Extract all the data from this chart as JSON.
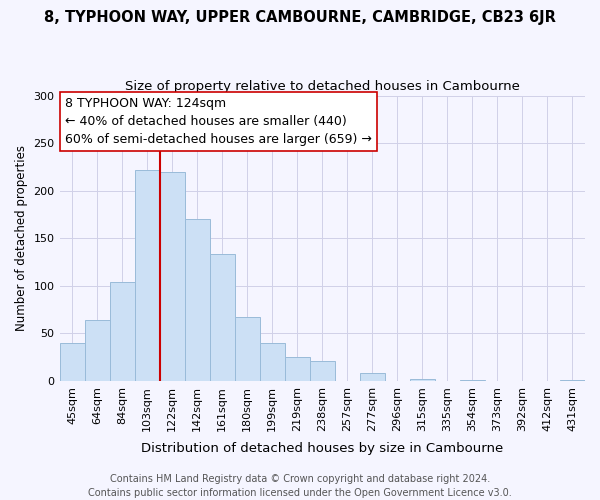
{
  "title": "8, TYPHOON WAY, UPPER CAMBOURNE, CAMBRIDGE, CB23 6JR",
  "subtitle": "Size of property relative to detached houses in Cambourne",
  "xlabel": "Distribution of detached houses by size in Cambourne",
  "ylabel": "Number of detached properties",
  "bar_labels": [
    "45sqm",
    "64sqm",
    "84sqm",
    "103sqm",
    "122sqm",
    "142sqm",
    "161sqm",
    "180sqm",
    "199sqm",
    "219sqm",
    "238sqm",
    "257sqm",
    "277sqm",
    "296sqm",
    "315sqm",
    "335sqm",
    "354sqm",
    "373sqm",
    "392sqm",
    "412sqm",
    "431sqm"
  ],
  "bar_heights": [
    40,
    64,
    104,
    222,
    220,
    170,
    133,
    67,
    40,
    25,
    21,
    0,
    8,
    0,
    2,
    0,
    1,
    0,
    0,
    0,
    1
  ],
  "bar_color": "#cce0f5",
  "bar_edge_color": "#99bbd9",
  "ylim": [
    0,
    300
  ],
  "yticks": [
    0,
    50,
    100,
    150,
    200,
    250,
    300
  ],
  "vline_x_index": 4,
  "vline_color": "#cc0000",
  "annotation_line1": "8 TYPHOON WAY: 124sqm",
  "annotation_line2": "← 40% of detached houses are smaller (440)",
  "annotation_line3": "60% of semi-detached houses are larger (659) →",
  "footer_text": "Contains HM Land Registry data © Crown copyright and database right 2024.\nContains public sector information licensed under the Open Government Licence v3.0.",
  "background_color": "#f5f5ff",
  "grid_color": "#d0d0e8",
  "title_fontsize": 10.5,
  "subtitle_fontsize": 9.5,
  "annotation_fontsize": 9.0,
  "footer_fontsize": 7.0,
  "ylabel_fontsize": 8.5,
  "xlabel_fontsize": 9.5,
  "tick_fontsize": 8.0
}
